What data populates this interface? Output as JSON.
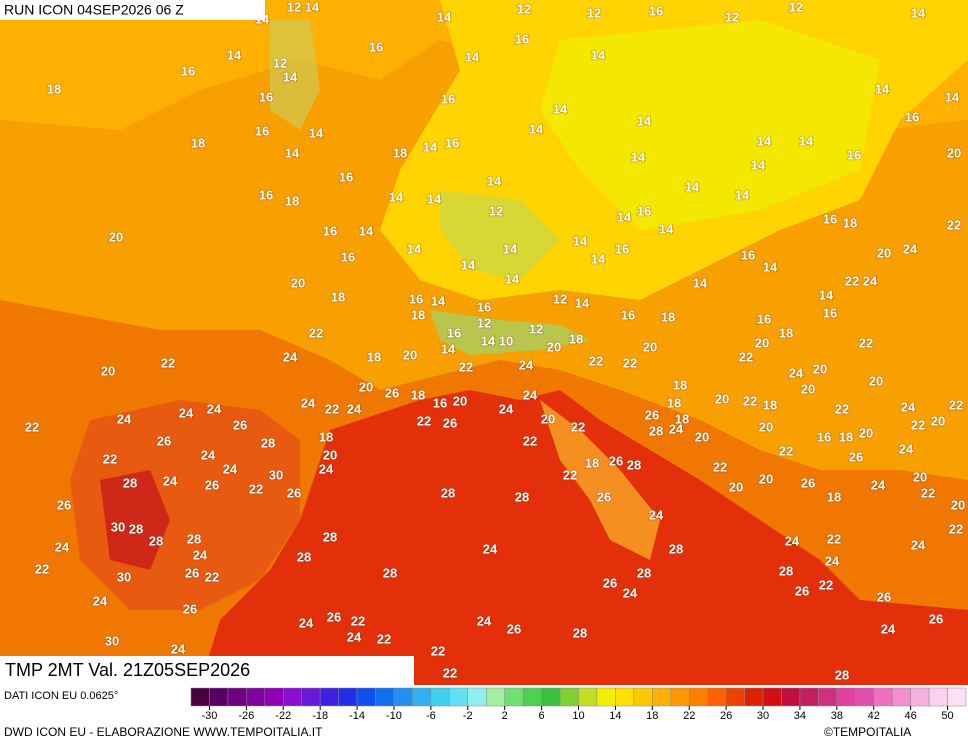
{
  "header": {
    "run": "RUN ICON 04SEP2026 06 Z"
  },
  "map": {
    "title": "TMP 2MT Val. 21Z05SEP2026",
    "labels": [
      12,
      14,
      14,
      14,
      12,
      12,
      16,
      12,
      12,
      14,
      16,
      16,
      14,
      14,
      16,
      12,
      18,
      14,
      14,
      16,
      16,
      14,
      14,
      16,
      14,
      14,
      14,
      16,
      14,
      18,
      14,
      14,
      14,
      18,
      14,
      16,
      14,
      16,
      20,
      14,
      16,
      14,
      14,
      14,
      16,
      18,
      14,
      14,
      12,
      14,
      16,
      20,
      16,
      14,
      14,
      16,
      18,
      22,
      14,
      14,
      16,
      20,
      24,
      16,
      14,
      16,
      14,
      14,
      14,
      14,
      14,
      20,
      22,
      24,
      18,
      14,
      16,
      14,
      12,
      16,
      18,
      14,
      16,
      18,
      16,
      16,
      18,
      22,
      12,
      12,
      16,
      14,
      10,
      18,
      22,
      20,
      20,
      14,
      20,
      24,
      22,
      18,
      20,
      22,
      22,
      22,
      22,
      24,
      20,
      20,
      24,
      20,
      26,
      18,
      18,
      20,
      20,
      24,
      22,
      24,
      16,
      20,
      24,
      24,
      20,
      22,
      18,
      18,
      24,
      22,
      22,
      24,
      24,
      24,
      26,
      22,
      26,
      20,
      26,
      18,
      22,
      20,
      20,
      22,
      26,
      28,
      18,
      22,
      22,
      28,
      24,
      20,
      16,
      18,
      20,
      24,
      22,
      24,
      24,
      30,
      24,
      20,
      22,
      26,
      18,
      26,
      28,
      22,
      28,
      24,
      26,
      22,
      26,
      28,
      28,
      22,
      20,
      20,
      26,
      18,
      24,
      20,
      22,
      26,
      26,
      24,
      30,
      28,
      28,
      28,
      24,
      28,
      24,
      28,
      24,
      22,
      20,
      22,
      24,
      24,
      28,
      22,
      30,
      26,
      22,
      28,
      28,
      28,
      24,
      26,
      24,
      22,
      24,
      26,
      26,
      26,
      26,
      24,
      26,
      22,
      24,
      26,
      24,
      22,
      28,
      24,
      30,
      24,
      22,
      28,
      22
    ]
  },
  "legend": {
    "source": "DATI ICON EU 0.0625°",
    "colors": [
      "#4a0040",
      "#5a0060",
      "#700080",
      "#8000a0",
      "#9000b8",
      "#8a10d0",
      "#6a18d8",
      "#4020e0",
      "#2030e8",
      "#1050f0",
      "#1070f0",
      "#2090f0",
      "#30b0f0",
      "#40d0f0",
      "#60e0f0",
      "#90f0f0",
      "#a0f0a0",
      "#70e070",
      "#50d050",
      "#40c040",
      "#80d030",
      "#c0e020",
      "#f0f000",
      "#ffe000",
      "#ffc800",
      "#ffb000",
      "#ff9800",
      "#ff8000",
      "#ff6000",
      "#f04000",
      "#e02000",
      "#d01010",
      "#c01040",
      "#c02060",
      "#d03080",
      "#e040a0",
      "#e050b0",
      "#f070c0",
      "#f090d0",
      "#f8b0e0",
      "#fcd0f0",
      "#fde0f4"
    ],
    "ticks": [
      -30,
      -26,
      -22,
      -18,
      -14,
      -10,
      -6,
      -2,
      2,
      6,
      10,
      14,
      18,
      22,
      26,
      30,
      34,
      38,
      42,
      46,
      50
    ]
  },
  "footer": {
    "credit": "DWD ICON EU - ELABORAZIONE WWW.TEMPOITALIA.IT",
    "copyright": "©TEMPOITALIA"
  }
}
